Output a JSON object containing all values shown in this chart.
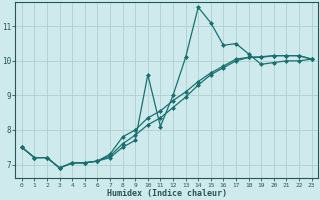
{
  "title": "",
  "xlabel": "Humidex (Indice chaleur)",
  "bg_color": "#ceeaec",
  "grid_color": "#b0d0d0",
  "line_color": "#1a7070",
  "marker": "D",
  "marker_size": 2.0,
  "line_width": 0.9,
  "xlim": [
    -0.5,
    23.5
  ],
  "ylim": [
    6.6,
    11.7
  ],
  "xticks": [
    0,
    1,
    2,
    3,
    4,
    5,
    6,
    7,
    8,
    9,
    10,
    11,
    12,
    13,
    14,
    15,
    16,
    17,
    18,
    19,
    20,
    21,
    22,
    23
  ],
  "yticks": [
    7,
    8,
    9,
    10,
    11
  ],
  "series": [
    [
      7.5,
      7.2,
      7.2,
      6.9,
      7.05,
      7.05,
      7.1,
      7.2,
      7.5,
      7.7,
      9.6,
      8.1,
      9.0,
      10.1,
      11.55,
      11.1,
      10.45,
      10.5,
      10.2,
      9.9,
      9.95,
      10.0,
      10.0,
      10.05
    ],
    [
      7.5,
      7.2,
      7.2,
      6.9,
      7.05,
      7.05,
      7.1,
      7.25,
      7.6,
      7.85,
      8.15,
      8.35,
      8.65,
      8.95,
      9.3,
      9.6,
      9.8,
      10.0,
      10.1,
      10.1,
      10.15,
      10.15,
      10.15,
      10.05
    ],
    [
      7.5,
      7.2,
      7.2,
      6.9,
      7.05,
      7.05,
      7.1,
      7.3,
      7.8,
      8.0,
      8.35,
      8.55,
      8.85,
      9.1,
      9.4,
      9.65,
      9.85,
      10.05,
      10.1,
      10.12,
      10.15,
      10.15,
      10.15,
      10.05
    ]
  ]
}
